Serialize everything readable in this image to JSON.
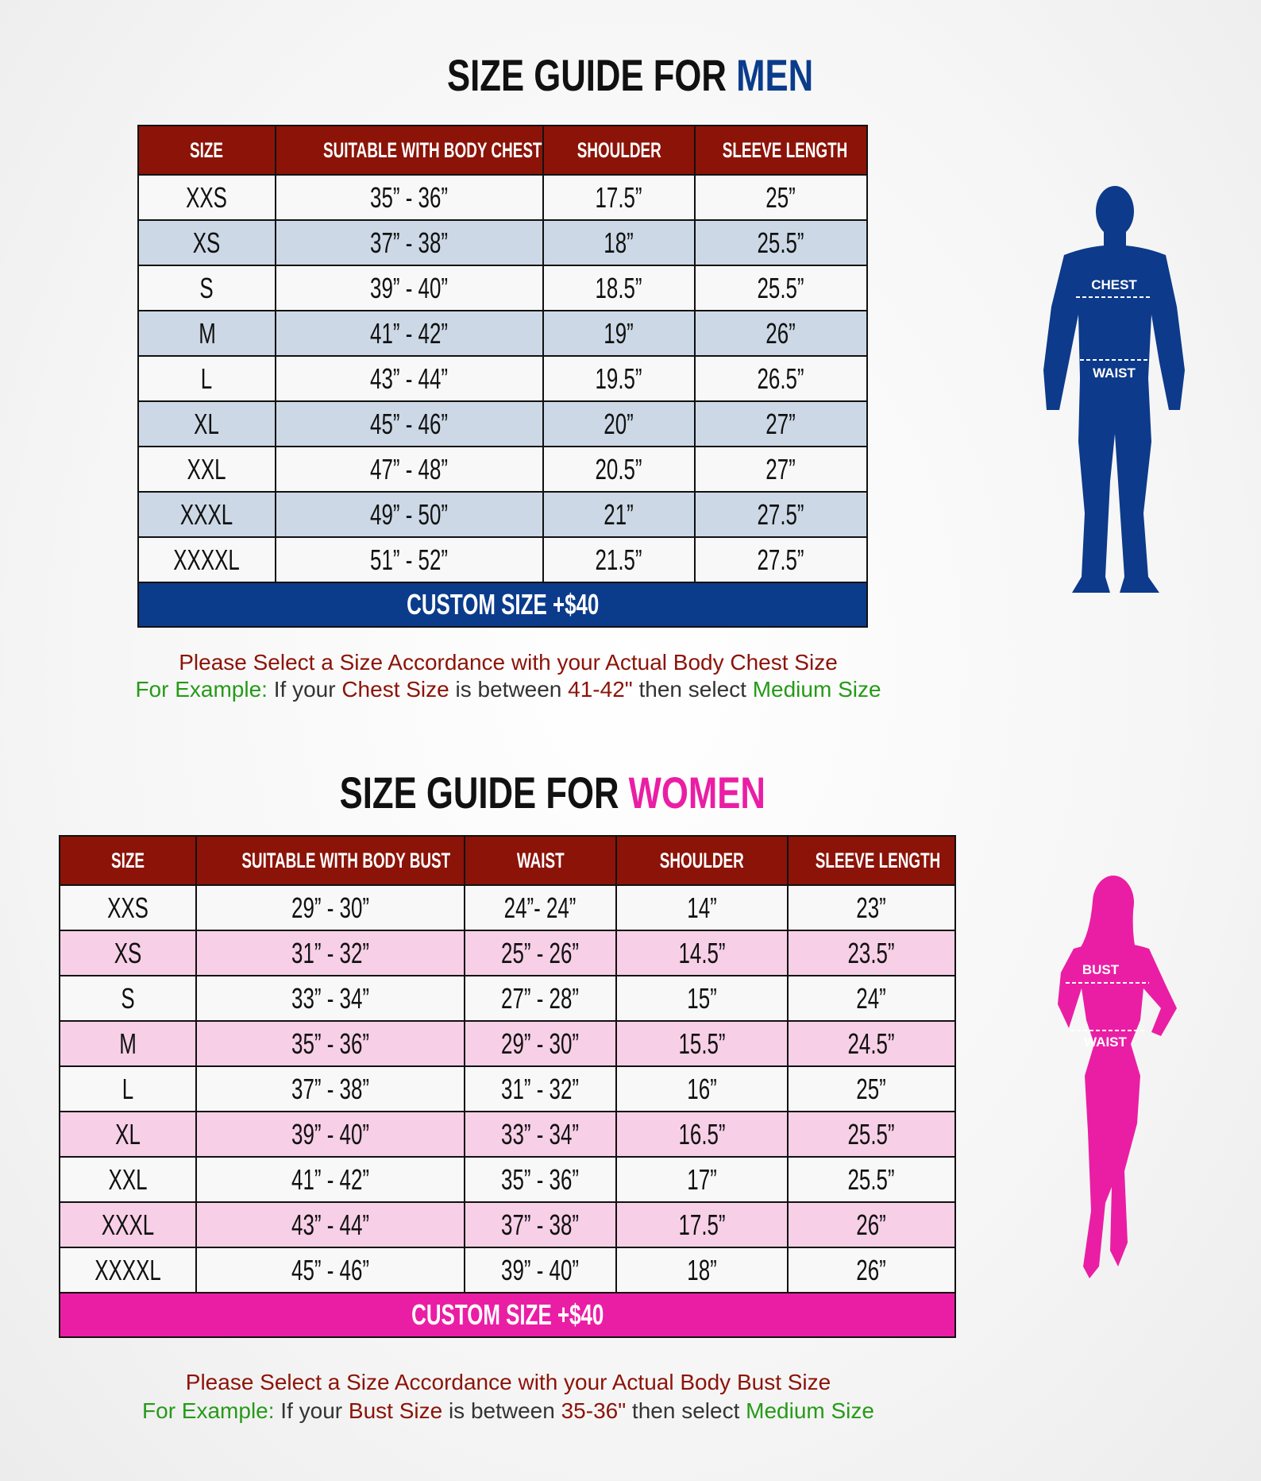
{
  "men": {
    "title_prefix": "SIZE GUIDE FOR",
    "title_accent": "MEN",
    "accent_color": "#0b3c8c",
    "headers": [
      "SIZE",
      "SUITABLE WITH BODY CHEST",
      "SHOULDER",
      "SLEEVE LENGTH"
    ],
    "rows": [
      [
        "XXS",
        "35” - 36”",
        "17.5”",
        "25”"
      ],
      [
        "XS",
        "37” - 38”",
        "18”",
        "25.5”"
      ],
      [
        "S",
        "39” - 40”",
        "18.5”",
        "25.5”"
      ],
      [
        "M",
        "41” - 42”",
        "19”",
        "26”"
      ],
      [
        "L",
        "43” - 44”",
        "19.5”",
        "26.5”"
      ],
      [
        "XL",
        "45” - 46”",
        "20”",
        "27”"
      ],
      [
        "XXL",
        "47” - 48”",
        "20.5”",
        "27”"
      ],
      [
        "XXXL",
        "49” - 50”",
        "21”",
        "27.5”"
      ],
      [
        "XXXXL",
        "51” - 52”",
        "21.5”",
        "27.5”"
      ]
    ],
    "custom": "CUSTOM SIZE +$40",
    "note1": "Please Select a Size Accordance with your Actual Body Chest Size",
    "note2": {
      "a": "For Example:",
      "b": " If your ",
      "c": "Chest Size",
      "d": " is between ",
      "e": "41-42\"",
      "f": " then select ",
      "g": "Medium Size"
    },
    "figure": {
      "label1": "CHEST",
      "label2": "WAIST",
      "color": "#0d3a8a"
    }
  },
  "women": {
    "title_prefix": "SIZE GUIDE FOR",
    "title_accent": "WOMEN",
    "accent_color": "#ea1ea4",
    "headers": [
      "SIZE",
      "SUITABLE WITH BODY BUST",
      "WAIST",
      "SHOULDER",
      "SLEEVE LENGTH"
    ],
    "rows": [
      [
        "XXS",
        "29” - 30”",
        "24”- 24”",
        "14”",
        "23”"
      ],
      [
        "XS",
        "31” - 32”",
        "25” - 26”",
        "14.5”",
        "23.5”"
      ],
      [
        "S",
        "33” - 34”",
        "27” - 28”",
        "15”",
        "24”"
      ],
      [
        "M",
        "35” - 36”",
        "29” - 30”",
        "15.5”",
        "24.5”"
      ],
      [
        "L",
        "37” - 38”",
        "31” - 32”",
        "16”",
        "25”"
      ],
      [
        "XL",
        "39” - 40”",
        "33” - 34”",
        "16.5”",
        "25.5”"
      ],
      [
        "XXL",
        "41” - 42”",
        "35” - 36”",
        "17”",
        "25.5”"
      ],
      [
        "XXXL",
        "43” - 44”",
        "37” - 38”",
        "17.5”",
        "26”"
      ],
      [
        "XXXXL",
        "45” - 46”",
        "39” - 40”",
        "18”",
        "26”"
      ]
    ],
    "custom": "CUSTOM SIZE +$40",
    "note1": "Please Select a Size Accordance with your Actual Body Bust Size",
    "note2": {
      "a": "For Example:",
      "b": " If your ",
      "c": "Bust Size",
      "d": " is between ",
      "e": "35-36\"",
      "f": " then select ",
      "g": "Medium Size"
    },
    "figure": {
      "label1": "BUST",
      "label2": "WAIST",
      "color": "#ea1ea4"
    }
  }
}
